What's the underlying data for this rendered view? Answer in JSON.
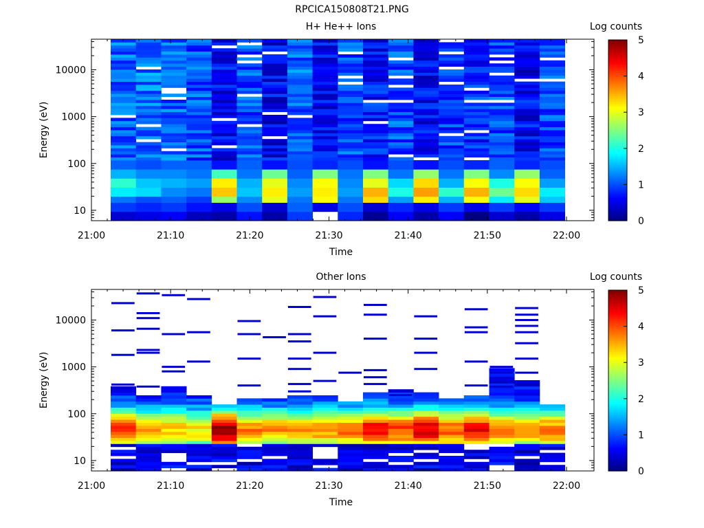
{
  "figure": {
    "filename": "RPCICA150808T21.PNG"
  },
  "chart_data": [
    {
      "type": "heatmap",
      "title": "H+ He++ Ions",
      "xlabel": "Time",
      "ylabel": "Energy (eV)",
      "colorbar_label": "Log counts",
      "colorbar_ticks": [
        "0",
        "1",
        "2",
        "3",
        "4",
        "5"
      ],
      "x_ticks": [
        "21:00",
        "21:10",
        "21:20",
        "21:30",
        "21:40",
        "21:50",
        "22:00"
      ],
      "y_ticks": [
        "10",
        "100",
        "1000",
        "10000"
      ],
      "ylim": [
        6,
        45000
      ],
      "ylog": true,
      "clim": [
        0,
        5
      ],
      "grid": false,
      "time_bins": 18,
      "columns": [
        {
          "low_band": [
            0.4,
            0.9,
            1.2,
            1.8,
            2.1,
            1.5,
            1.1
          ],
          "upper_level": 1.1
        },
        {
          "low_band": [
            0.5,
            0.8,
            1.0,
            1.7,
            1.6,
            1.3,
            1.0
          ],
          "upper_level": 1.2
        },
        {
          "low_band": [
            0.6,
            0.9,
            1.1,
            1.3,
            1.5,
            1.3,
            1.1
          ],
          "upper_level": 1.1
        },
        {
          "low_band": [
            0.3,
            0.7,
            0.9,
            1.2,
            1.4,
            1.2,
            1.1
          ],
          "upper_level": 1.0
        },
        {
          "low_band": [
            0.2,
            0.5,
            2.6,
            3.4,
            3.2,
            2.2,
            0.7
          ],
          "upper_level": 0.6
        },
        {
          "low_band": [
            0.7,
            1.0,
            1.3,
            1.6,
            1.5,
            1.2,
            1.1
          ],
          "upper_level": 1.0
        },
        {
          "low_band": [
            0.2,
            0.4,
            3.0,
            3.2,
            3.0,
            2.4,
            0.7
          ],
          "upper_level": 0.6
        },
        {
          "low_band": [
            0.9,
            1.1,
            1.2,
            1.4,
            1.3,
            1.1,
            1.0
          ],
          "upper_level": 1.1
        },
        {
          "low_band": [
            0.0,
            0.5,
            3.1,
            3.2,
            3.1,
            2.5,
            0.8
          ],
          "upper_level": 0.6
        },
        {
          "low_band": [
            0.8,
            1.0,
            1.2,
            1.4,
            1.3,
            1.2,
            1.0
          ],
          "upper_level": 1.0
        },
        {
          "low_band": [
            0.1,
            0.4,
            3.3,
            3.5,
            3.0,
            2.5,
            0.7
          ],
          "upper_level": 0.7
        },
        {
          "low_band": [
            0.6,
            0.8,
            1.4,
            2.0,
            1.7,
            1.2,
            1.0
          ],
          "upper_level": 1.0
        },
        {
          "low_band": [
            0.2,
            0.5,
            3.2,
            3.6,
            3.3,
            2.6,
            0.7
          ],
          "upper_level": 0.6
        },
        {
          "low_band": [
            0.6,
            0.9,
            1.5,
            2.1,
            1.5,
            1.2,
            1.0
          ],
          "upper_level": 0.9
        },
        {
          "low_band": [
            0.0,
            0.5,
            3.1,
            3.5,
            3.1,
            2.5,
            0.8
          ],
          "upper_level": 0.8
        },
        {
          "low_band": [
            0.4,
            0.9,
            1.8,
            2.4,
            2.0,
            1.3,
            1.1
          ],
          "upper_level": 1.0
        },
        {
          "low_band": [
            0.2,
            0.6,
            3.0,
            3.3,
            3.1,
            2.6,
            0.8
          ],
          "upper_level": 0.6
        },
        {
          "low_band": [
            0.5,
            0.9,
            1.6,
            1.8,
            1.4,
            1.1,
            1.0
          ],
          "upper_level": 1.0
        }
      ]
    },
    {
      "type": "heatmap",
      "title": "Other Ions",
      "xlabel": "Time",
      "ylabel": "Energy (eV)",
      "colorbar_label": "Log counts",
      "colorbar_ticks": [
        "0",
        "1",
        "2",
        "3",
        "4",
        "5"
      ],
      "x_ticks": [
        "21:00",
        "21:10",
        "21:20",
        "21:30",
        "21:40",
        "21:50",
        "22:00"
      ],
      "y_ticks": [
        "10",
        "100",
        "1000",
        "10000"
      ],
      "ylim": [
        6,
        45000
      ],
      "ylog": true,
      "clim": [
        0,
        5
      ],
      "grid": false,
      "time_bins": 18,
      "columns": [
        {
          "band_top": 400,
          "peak": 3.6,
          "sparse_high": [
            23000,
            6000,
            1800,
            420
          ]
        },
        {
          "band_top": 250,
          "peak": 3.0,
          "sparse_high": [
            37000,
            14000,
            11000,
            6500,
            2300,
            2000,
            380
          ]
        },
        {
          "band_top": 400,
          "peak": 2.8,
          "sparse_high": [
            34000,
            5000,
            1000,
            800
          ]
        },
        {
          "band_top": 260,
          "peak": 2.6,
          "sparse_high": [
            28000,
            5500,
            1300
          ]
        },
        {
          "band_top": 170,
          "peak": 4.3,
          "sparse_high": []
        },
        {
          "band_top": 220,
          "peak": 3.1,
          "sparse_high": [
            9500,
            5000,
            1500,
            400
          ]
        },
        {
          "band_top": 210,
          "peak": 3.0,
          "sparse_high": [
            4300
          ]
        },
        {
          "band_top": 260,
          "peak": 3.0,
          "sparse_high": [
            19000,
            5000,
            3500,
            1500,
            900,
            430,
            300
          ]
        },
        {
          "band_top": 250,
          "peak": 3.1,
          "sparse_high": [
            31000,
            12000,
            2000,
            500
          ]
        },
        {
          "band_top": 190,
          "peak": 3.3,
          "sparse_high": [
            750
          ]
        },
        {
          "band_top": 270,
          "peak": 3.9,
          "sparse_high": [
            21000,
            13000,
            4000,
            850,
            600,
            430
          ]
        },
        {
          "band_top": 330,
          "peak": 3.5,
          "sparse_high": [
            250
          ]
        },
        {
          "band_top": 300,
          "peak": 4.0,
          "sparse_high": [
            12000,
            4000,
            2000,
            900
          ]
        },
        {
          "band_top": 220,
          "peak": 3.4,
          "sparse_high": []
        },
        {
          "band_top": 230,
          "peak": 3.8,
          "sparse_high": [
            17000,
            7000,
            5500,
            1300,
            400
          ]
        },
        {
          "band_top": 1000,
          "peak": 3.3,
          "sparse_high": [
            1000,
            750,
            580,
            500,
            380
          ]
        },
        {
          "band_top": 500,
          "peak": 3.0,
          "sparse_high": [
            18000,
            13000,
            10000,
            7500,
            5500,
            3200,
            1500,
            750
          ]
        },
        {
          "band_top": 160,
          "peak": 3.2,
          "sparse_high": []
        }
      ]
    }
  ]
}
